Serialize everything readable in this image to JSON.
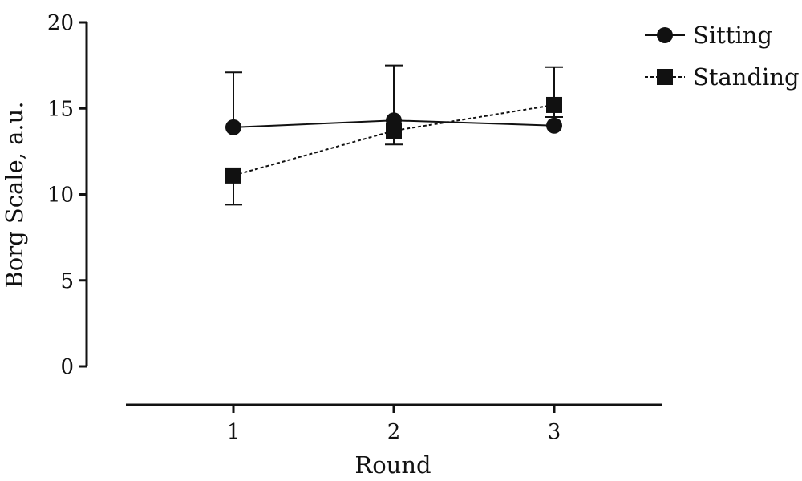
{
  "chart_data": {
    "type": "line",
    "title": "",
    "xlabel": "Round",
    "ylabel": "Borg Scale, a.u.",
    "categories": [
      "1",
      "2",
      "3"
    ],
    "ylim": [
      0,
      20
    ],
    "yticks": [
      "0",
      "5",
      "10",
      "15",
      "20"
    ],
    "grid": false,
    "legend_position": "top-right",
    "series": [
      {
        "name": "Sitting",
        "marker": "circle",
        "line_style": "solid",
        "values": [
          13.9,
          14.3,
          14.0
        ],
        "error_upper": [
          17.1,
          17.5,
          17.4
        ]
      },
      {
        "name": "Standing",
        "marker": "square",
        "line_style": "dashed",
        "values": [
          11.1,
          13.7,
          15.2
        ],
        "error_lower": [
          9.4,
          12.9,
          14.5
        ]
      }
    ],
    "colors": {
      "ink": "#111111",
      "background": "#ffffff"
    }
  }
}
